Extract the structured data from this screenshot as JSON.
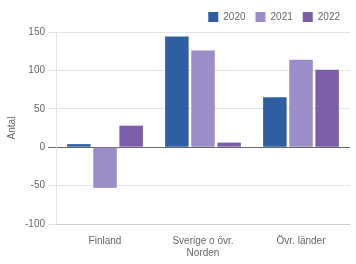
{
  "chart_data": {
    "type": "bar",
    "categories": [
      "Finland",
      "Sverige o övr.\nNorden",
      "Övr. länder"
    ],
    "series": [
      {
        "name": "2020",
        "color": "#2E5FA3",
        "values": [
          4,
          144,
          65
        ]
      },
      {
        "name": "2021",
        "color": "#9B8DC8",
        "values": [
          -53,
          126,
          114
        ]
      },
      {
        "name": "2022",
        "color": "#7B5EA7",
        "values": [
          28,
          6,
          101
        ]
      }
    ],
    "ylabel": "Antal",
    "ylim": [
      -100,
      150
    ],
    "yticks": [
      -100,
      -50,
      0,
      50,
      100,
      150
    ],
    "grid": true,
    "legend": "upper right"
  }
}
